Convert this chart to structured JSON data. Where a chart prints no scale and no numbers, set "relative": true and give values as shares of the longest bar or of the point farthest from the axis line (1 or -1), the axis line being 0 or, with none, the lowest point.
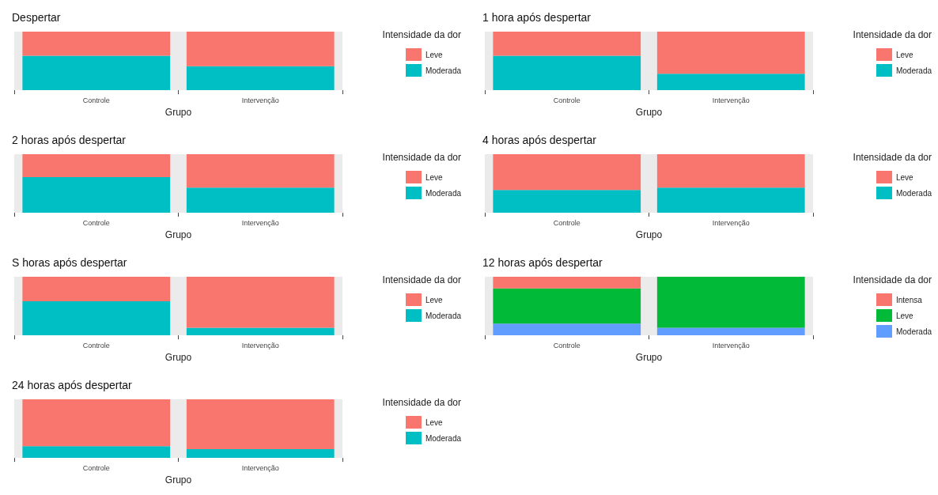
{
  "chart_data": [
    {
      "type": "bar",
      "title": "Despertar",
      "xlabel": "Grupo",
      "legend_title": "Intensidade da dor",
      "categories": [
        "Controle",
        "Intervenção"
      ],
      "stacked": true,
      "relative": true,
      "legend": "right",
      "series": [
        {
          "name": "Moderada",
          "color": "#00bfc4",
          "values": [
            0.59,
            0.41
          ]
        },
        {
          "name": "Leve",
          "color": "#f8766d",
          "values": [
            0.41,
            0.59
          ]
        }
      ]
    },
    {
      "type": "bar",
      "title": "1 hora após despertar",
      "xlabel": "Grupo",
      "legend_title": "Intensidade da dor",
      "categories": [
        "Controle",
        "Intervenção"
      ],
      "stacked": true,
      "relative": true,
      "legend": "right",
      "series": [
        {
          "name": "Moderada",
          "color": "#00bfc4",
          "values": [
            0.59,
            0.28
          ]
        },
        {
          "name": "Leve",
          "color": "#f8766d",
          "values": [
            0.41,
            0.72
          ]
        }
      ]
    },
    {
      "type": "bar",
      "title": "2 horas após despertar",
      "xlabel": "Grupo",
      "legend_title": "Intensidade da dor",
      "categories": [
        "Controle",
        "Intervenção"
      ],
      "stacked": true,
      "relative": true,
      "legend": "right",
      "series": [
        {
          "name": "Moderada",
          "color": "#00bfc4",
          "values": [
            0.61,
            0.43
          ]
        },
        {
          "name": "Leve",
          "color": "#f8766d",
          "values": [
            0.39,
            0.57
          ]
        }
      ]
    },
    {
      "type": "bar",
      "title": "4 horas após despertar",
      "xlabel": "Grupo",
      "legend_title": "Intensidade da dor",
      "categories": [
        "Controle",
        "Intervenção"
      ],
      "stacked": true,
      "relative": true,
      "legend": "right",
      "series": [
        {
          "name": "Moderada",
          "color": "#00bfc4",
          "values": [
            0.39,
            0.43
          ]
        },
        {
          "name": "Leve",
          "color": "#f8766d",
          "values": [
            0.61,
            0.57
          ]
        }
      ]
    },
    {
      "type": "bar",
      "title": "S horas após despertar",
      "xlabel": "Grupo",
      "legend_title": "Intensidade da dor",
      "categories": [
        "Controle",
        "Intervenção"
      ],
      "stacked": true,
      "relative": true,
      "legend": "right",
      "series": [
        {
          "name": "Moderada",
          "color": "#00bfc4",
          "values": [
            0.58,
            0.13
          ]
        },
        {
          "name": "Leve",
          "color": "#f8766d",
          "values": [
            0.42,
            0.87
          ]
        }
      ]
    },
    {
      "type": "bar",
      "title": "12 horas após despertar",
      "xlabel": "Grupo",
      "legend_title": "Intensidade da dor",
      "categories": [
        "Controle",
        "Intervenção"
      ],
      "stacked": true,
      "relative": true,
      "legend": "right",
      "series": [
        {
          "name": "Moderada",
          "color": "#619cff",
          "values": [
            0.2,
            0.13
          ]
        },
        {
          "name": "Leve",
          "color": "#00ba38",
          "values": [
            0.6,
            0.87
          ]
        },
        {
          "name": "Intensa",
          "color": "#f8766d",
          "values": [
            0.2,
            0
          ]
        }
      ]
    },
    {
      "type": "bar",
      "title": "24 horas após despertar",
      "xlabel": "Grupo",
      "legend_title": "Intensidade da dor",
      "categories": [
        "Controle",
        "Intervenção"
      ],
      "stacked": true,
      "relative": true,
      "legend": "right",
      "series": [
        {
          "name": "Moderada",
          "color": "#00bfc4",
          "values": [
            0.2,
            0.15
          ]
        },
        {
          "name": "Leve",
          "color": "#f8766d",
          "values": [
            0.8,
            0.85
          ]
        }
      ]
    }
  ]
}
